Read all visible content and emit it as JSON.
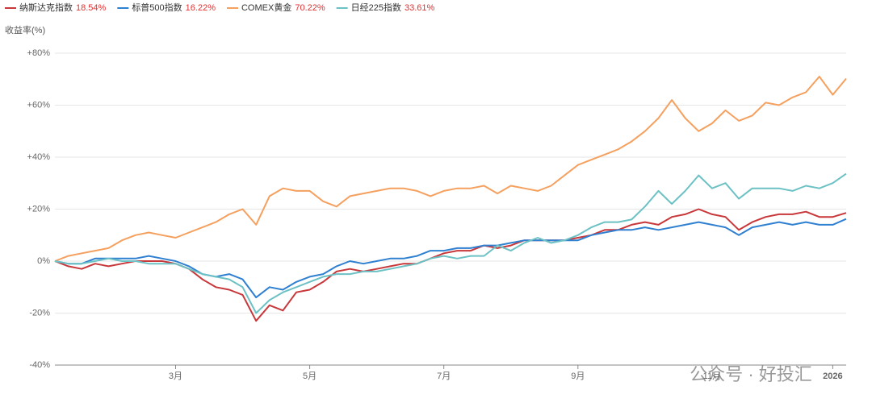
{
  "chart_data": {
    "type": "line",
    "ylabel": "收益率(%)",
    "watermark": "公众号 · 好投汇",
    "legend": "top-left",
    "grid": true,
    "ylim": [
      -40,
      80
    ],
    "yticks": [
      {
        "value": 80,
        "label": "+80%"
      },
      {
        "value": 60,
        "label": "+60%"
      },
      {
        "value": 40,
        "label": "+40%"
      },
      {
        "value": 20,
        "label": "+20%"
      },
      {
        "value": 0,
        "label": "0%"
      },
      {
        "value": -20,
        "label": "-20%"
      },
      {
        "value": -40,
        "label": "-40%"
      }
    ],
    "categories": [
      null,
      null,
      null,
      null,
      null,
      null,
      null,
      null,
      null,
      "3月",
      null,
      null,
      null,
      null,
      null,
      null,
      null,
      null,
      null,
      "5月",
      null,
      null,
      null,
      null,
      null,
      null,
      null,
      null,
      null,
      "7月",
      null,
      null,
      null,
      null,
      null,
      null,
      null,
      null,
      null,
      "9月",
      null,
      null,
      null,
      null,
      null,
      null,
      null,
      null,
      null,
      "11月",
      null,
      null,
      null,
      null,
      null,
      null,
      null,
      null,
      "2026",
      null
    ],
    "series": [
      {
        "name": "纳斯达克指数",
        "return_label": "18.54%",
        "color": "#c8373a",
        "values": [
          0,
          -2,
          -3,
          -1,
          -2,
          -1,
          0,
          0,
          0,
          -1,
          -3,
          -7,
          -10,
          -11,
          -13,
          -23,
          -17,
          -19,
          -12,
          -11,
          -8,
          -4,
          -3,
          -4,
          -3,
          -2,
          -1,
          -1,
          1,
          3,
          4,
          4,
          6,
          5,
          6,
          8,
          8,
          8,
          8,
          9,
          10,
          12,
          12,
          14,
          15,
          14,
          17,
          18,
          20,
          18,
          17,
          12,
          15,
          17,
          18,
          18,
          19,
          17,
          17,
          18.54
        ]
      },
      {
        "name": "标普500指数",
        "return_label": "16.22%",
        "color": "#2f80d1",
        "values": [
          0,
          -1,
          -1,
          1,
          1,
          1,
          1,
          2,
          1,
          0,
          -2,
          -5,
          -6,
          -5,
          -7,
          -14,
          -10,
          -11,
          -8,
          -6,
          -5,
          -2,
          0,
          -1,
          0,
          1,
          1,
          2,
          4,
          4,
          5,
          5,
          6,
          6,
          7,
          8,
          8,
          8,
          8,
          8,
          10,
          11,
          12,
          12,
          13,
          12,
          13,
          14,
          15,
          14,
          13,
          10,
          13,
          14,
          15,
          14,
          15,
          14,
          14,
          16.22
        ]
      },
      {
        "name": "COMEX黄金",
        "return_label": "70.22%",
        "color": "#f5a05e",
        "values": [
          0,
          2,
          3,
          4,
          5,
          8,
          10,
          11,
          10,
          9,
          11,
          13,
          15,
          18,
          20,
          14,
          25,
          28,
          27,
          27,
          23,
          21,
          25,
          26,
          27,
          28,
          28,
          27,
          25,
          27,
          28,
          28,
          29,
          26,
          29,
          28,
          27,
          29,
          33,
          37,
          39,
          41,
          43,
          46,
          50,
          55,
          62,
          55,
          50,
          53,
          58,
          54,
          56,
          61,
          60,
          63,
          65,
          71,
          64,
          70.22
        ]
      },
      {
        "name": "日经225指数",
        "return_label": "33.61%",
        "color": "#6cc1c4",
        "values": [
          0,
          -1,
          -1,
          0,
          1,
          0,
          0,
          -1,
          -1,
          -1,
          -3,
          -5,
          -6,
          -7,
          -10,
          -20,
          -15,
          -12,
          -10,
          -8,
          -6,
          -5,
          -5,
          -4,
          -4,
          -3,
          -2,
          -1,
          1,
          2,
          1,
          2,
          2,
          6,
          4,
          7,
          9,
          7,
          8,
          10,
          13,
          15,
          15,
          16,
          21,
          27,
          22,
          27,
          33,
          28,
          30,
          24,
          28,
          28,
          28,
          27,
          29,
          28,
          30,
          33.61
        ]
      }
    ]
  }
}
